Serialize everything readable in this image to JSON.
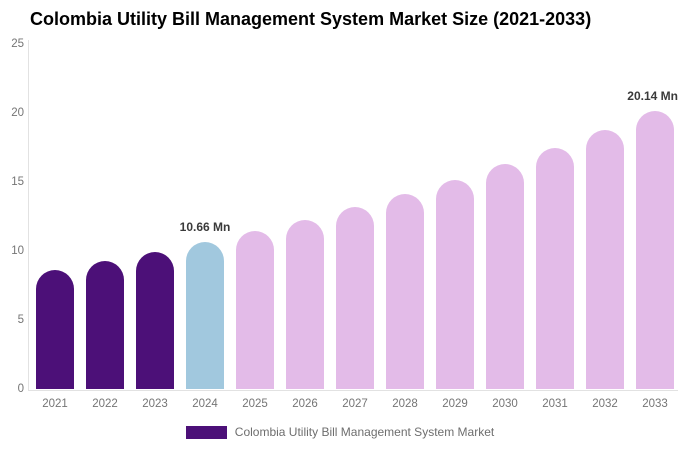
{
  "title": "Colombia Utility Bill Management System Market Size (2021-2033)",
  "colors": {
    "historical_bar": "#4C1078",
    "base_year_bar": "#A1C8DE",
    "forecast_bar": "#E3BBE8",
    "axis_line": "#E2E2E2",
    "tick_text": "#757575",
    "annotation_text": "#3A3A3A",
    "legend_text": "#6E6E6E",
    "title_text": "#000000",
    "background": "#FFFFFF"
  },
  "chart_data": {
    "type": "bar",
    "title": "Colombia Utility Bill Management System Market Size (2021-2033)",
    "categories": [
      "2021",
      "2022",
      "2023",
      "2024",
      "2025",
      "2026",
      "2027",
      "2028",
      "2029",
      "2030",
      "2031",
      "2032",
      "2033"
    ],
    "values": [
      8.62,
      9.25,
      9.93,
      10.66,
      11.44,
      12.28,
      13.18,
      14.15,
      15.18,
      16.3,
      17.49,
      18.77,
      20.14
    ],
    "unit": "Mn",
    "bar_colors": [
      "#4C1078",
      "#4C1078",
      "#4C1078",
      "#A1C8DE",
      "#E3BBE8",
      "#E3BBE8",
      "#E3BBE8",
      "#E3BBE8",
      "#E3BBE8",
      "#E3BBE8",
      "#E3BBE8",
      "#E3BBE8",
      "#E3BBE8"
    ],
    "xlabel": "",
    "ylabel": "",
    "ylim": [
      0,
      25
    ],
    "yticks": [
      0,
      5,
      10,
      15,
      20,
      25
    ],
    "grid": false,
    "bar_shape": "rounded-top",
    "annotations": [
      {
        "category": "2024",
        "text": "10.66 Mn"
      },
      {
        "category": "2033",
        "text": "20.14 Mn"
      }
    ],
    "legend_position": "bottom-center",
    "legend": [
      {
        "label": "Colombia Utility Bill Management System Market",
        "color": "#4C1078"
      }
    ]
  }
}
